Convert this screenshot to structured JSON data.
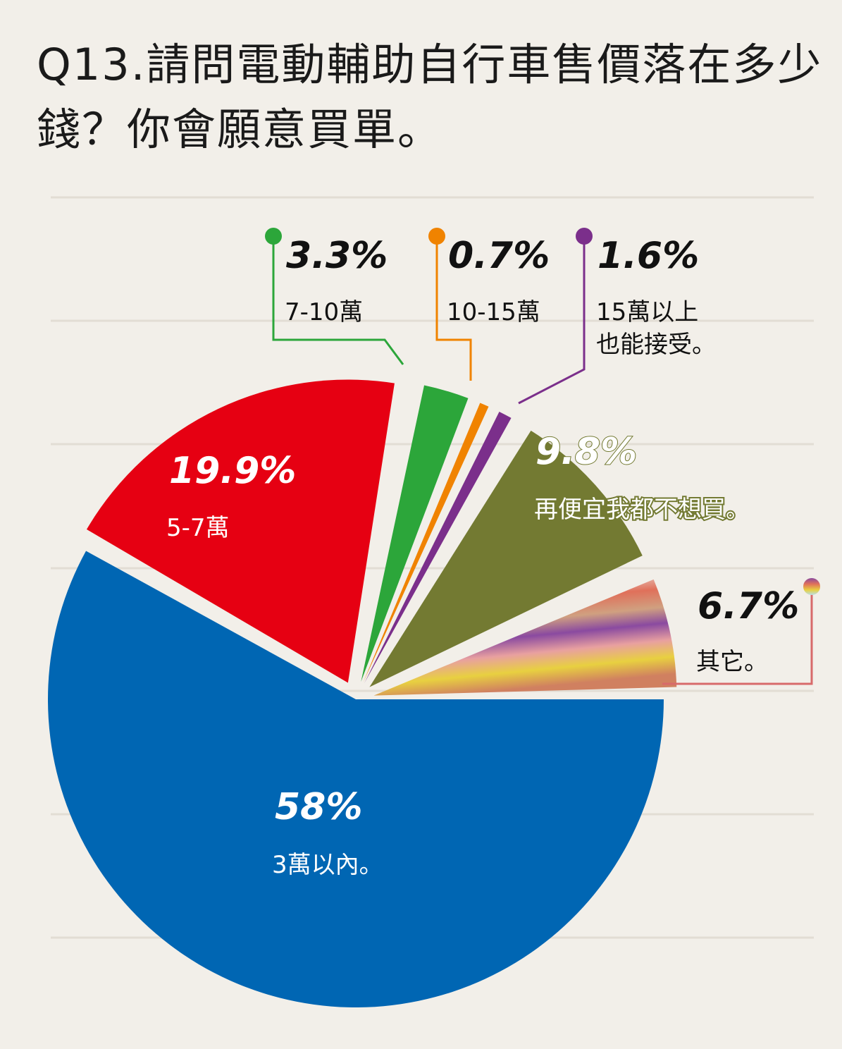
{
  "title": "Q13.請問電動輔助自行車售價落在多少錢？你會願意買單。",
  "chart_data": {
    "type": "pie",
    "title": "Q13.請問電動輔助自行車售價落在多少錢？你會願意買單。",
    "slices": [
      {
        "label": "3萬以內。",
        "value": 58,
        "value_label": "58%",
        "color": "#0066b3"
      },
      {
        "label": "5-7萬",
        "value": 19.9,
        "value_label": "19.9%",
        "color": "#e60012"
      },
      {
        "label": "7-10萬",
        "value": 3.3,
        "value_label": "3.3%",
        "color": "#2ca63a"
      },
      {
        "label": "10-15萬",
        "value": 0.7,
        "value_label": "0.7%",
        "color": "#f08300"
      },
      {
        "label": "15萬以上也能接受。",
        "value": 1.6,
        "value_label": "1.6%",
        "color": "#7b2f8b"
      },
      {
        "label": "再便宜我都不想買。",
        "value": 9.8,
        "value_label": "9.8%",
        "color": "#737a32"
      },
      {
        "label": "其它。",
        "value": 6.7,
        "value_label": "6.7%",
        "color": "gradient"
      }
    ]
  }
}
